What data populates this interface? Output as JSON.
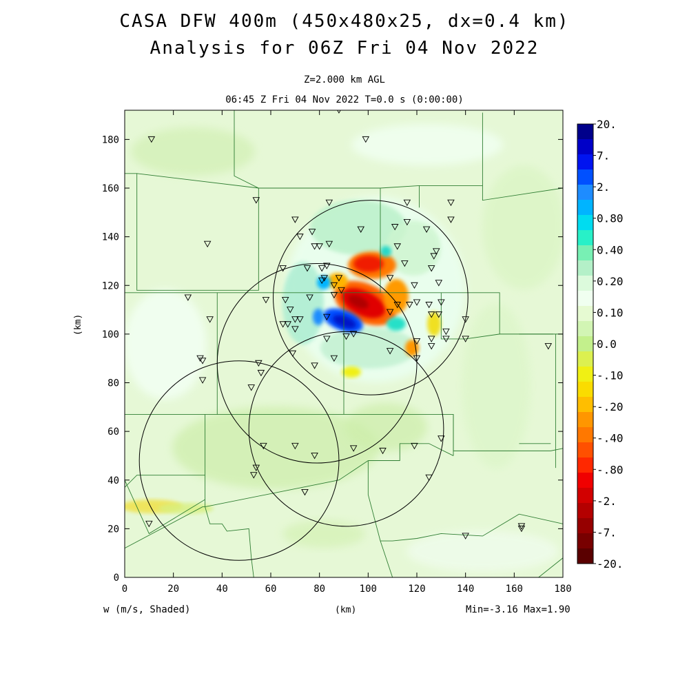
{
  "title_line1": "CASA DFW 400m (450x480x25, dx=0.4 km)",
  "title_line2": "Analysis for 06Z Fri 04 Nov 2022",
  "level": "Z=2.000 km AGL",
  "valid_time": "06:45 Z Fri 04 Nov 2022    T=0.0 s (0:00:00)",
  "x_axis_label": "(km)",
  "y_axis_label": "(km)",
  "field_label": "w (m/s, Shaded)",
  "minmax": "Min=-3.16 Max=1.90",
  "x_ticks": [
    "0",
    "20",
    "40",
    "60",
    "80",
    "100",
    "120",
    "140",
    "160",
    "180"
  ],
  "y_ticks": [
    "0",
    "20",
    "40",
    "60",
    "80",
    "100",
    "120",
    "140",
    "160",
    "180"
  ],
  "colorbar": {
    "labels": [
      "20.",
      "7.",
      "2.",
      "0.80",
      "0.40",
      "0.20",
      "0.10",
      "0.0",
      "-.10",
      "-.20",
      "-.40",
      "-.80",
      "-2.",
      "-7.",
      "-20."
    ],
    "colors": [
      "#00008b",
      "#0000c8",
      "#0014f0",
      "#0050ff",
      "#1e8cff",
      "#00b4ff",
      "#00dcf0",
      "#28f0c8",
      "#78f0b4",
      "#b4f0c8",
      "#dcfadc",
      "#f0fff0",
      "#e6fad2",
      "#d2f5b4",
      "#c3f08c",
      "#dcf050",
      "#f0f014",
      "#fadc00",
      "#ffbe00",
      "#ff9600",
      "#ff7800",
      "#ff5000",
      "#ff2800",
      "#f00000",
      "#d20000",
      "#b40000",
      "#960000",
      "#780000",
      "#5a0000"
    ]
  },
  "radar_sites": [
    {
      "name": "radar-coverage-north",
      "center_km": [
        101,
        115
      ],
      "radius_km": 40
    },
    {
      "name": "radar-coverage-central",
      "center_km": [
        79,
        88
      ],
      "radius_km": 41
    },
    {
      "name": "radar-coverage-south-east",
      "center_km": [
        91,
        61
      ],
      "radius_km": 40
    },
    {
      "name": "radar-coverage-south-west",
      "center_km": [
        47,
        48
      ],
      "radius_km": 41
    }
  ],
  "stations_km": [
    [
      88,
      192
    ],
    [
      11,
      180
    ],
    [
      99,
      180
    ],
    [
      116,
      154
    ],
    [
      54,
      155
    ],
    [
      84,
      154
    ],
    [
      134,
      154
    ],
    [
      70,
      147
    ],
    [
      134,
      147
    ],
    [
      97,
      143
    ],
    [
      111,
      144
    ],
    [
      116,
      146
    ],
    [
      124,
      143
    ],
    [
      77,
      142
    ],
    [
      72,
      140
    ],
    [
      34,
      137
    ],
    [
      78,
      136
    ],
    [
      80,
      136
    ],
    [
      84,
      137
    ],
    [
      112,
      136
    ],
    [
      128,
      134
    ],
    [
      127,
      132
    ],
    [
      115,
      129
    ],
    [
      65,
      127
    ],
    [
      75,
      127
    ],
    [
      81,
      127
    ],
    [
      83,
      128
    ],
    [
      126,
      127
    ],
    [
      88,
      123
    ],
    [
      82,
      123
    ],
    [
      81,
      122
    ],
    [
      109,
      123
    ],
    [
      119,
      120
    ],
    [
      129,
      121
    ],
    [
      86,
      120
    ],
    [
      89,
      118
    ],
    [
      26,
      115
    ],
    [
      58,
      114
    ],
    [
      66,
      114
    ],
    [
      76,
      115
    ],
    [
      120,
      113
    ],
    [
      112,
      112
    ],
    [
      117,
      112
    ],
    [
      125,
      112
    ],
    [
      130,
      113
    ],
    [
      86,
      116
    ],
    [
      68,
      110
    ],
    [
      126,
      108
    ],
    [
      129,
      108
    ],
    [
      35,
      106
    ],
    [
      65,
      104
    ],
    [
      70,
      106
    ],
    [
      72,
      106
    ],
    [
      109,
      109
    ],
    [
      140,
      106
    ],
    [
      67,
      104
    ],
    [
      70,
      102
    ],
    [
      83,
      107
    ],
    [
      132,
      101
    ],
    [
      126,
      98
    ],
    [
      132,
      98
    ],
    [
      140,
      98
    ],
    [
      91,
      99
    ],
    [
      94,
      100
    ],
    [
      120,
      97
    ],
    [
      174,
      95
    ],
    [
      126,
      95
    ],
    [
      109,
      93
    ],
    [
      83,
      98
    ],
    [
      69,
      92
    ],
    [
      120,
      90
    ],
    [
      31,
      90
    ],
    [
      32,
      89
    ],
    [
      55,
      88
    ],
    [
      86,
      90
    ],
    [
      78,
      87
    ],
    [
      56,
      84
    ],
    [
      32,
      81
    ],
    [
      52,
      78
    ],
    [
      130,
      57
    ],
    [
      57,
      54
    ],
    [
      70,
      54
    ],
    [
      94,
      53
    ],
    [
      119,
      54
    ],
    [
      106,
      52
    ],
    [
      78,
      50
    ],
    [
      53,
      42
    ],
    [
      54,
      45
    ],
    [
      125,
      41
    ],
    [
      74,
      35
    ],
    [
      10,
      22
    ],
    [
      140,
      17
    ],
    [
      163,
      21
    ],
    [
      163,
      20
    ]
  ],
  "county_lines_km": [
    [
      [
        45,
        193
      ],
      [
        45,
        165
      ],
      [
        55,
        160
      ],
      [
        65,
        160
      ]
    ],
    [
      [
        0,
        166
      ],
      [
        5,
        166
      ],
      [
        5,
        118
      ],
      [
        38,
        118
      ]
    ],
    [
      [
        5,
        166
      ],
      [
        55,
        160
      ]
    ],
    [
      [
        55,
        160
      ],
      [
        55,
        118
      ],
      [
        38,
        118
      ]
    ],
    [
      [
        55,
        160
      ],
      [
        105,
        160
      ],
      [
        121,
        161
      ],
      [
        147,
        161
      ],
      [
        147,
        191
      ]
    ],
    [
      [
        147,
        161
      ],
      [
        147,
        155
      ],
      [
        180,
        160
      ]
    ],
    [
      [
        0,
        117
      ],
      [
        38,
        117
      ],
      [
        38,
        67
      ],
      [
        0,
        67
      ]
    ],
    [
      [
        38,
        117
      ],
      [
        140,
        117
      ],
      [
        154,
        117
      ],
      [
        154,
        100
      ],
      [
        180,
        100
      ]
    ],
    [
      [
        105,
        160
      ],
      [
        105,
        117
      ]
    ],
    [
      [
        121,
        161
      ],
      [
        121,
        152
      ]
    ],
    [
      [
        130,
        117
      ],
      [
        130,
        98
      ],
      [
        140,
        98
      ],
      [
        154,
        100
      ]
    ],
    [
      [
        90,
        117
      ],
      [
        90,
        67
      ]
    ],
    [
      [
        38,
        67
      ],
      [
        90,
        67
      ],
      [
        135,
        67
      ],
      [
        135,
        50
      ]
    ],
    [
      [
        135,
        67
      ],
      [
        135,
        52
      ],
      [
        175,
        52
      ],
      [
        180,
        53
      ]
    ],
    [
      [
        33,
        67
      ],
      [
        33,
        42
      ],
      [
        5,
        42
      ],
      [
        0,
        37
      ]
    ],
    [
      [
        33,
        42
      ],
      [
        33,
        29
      ],
      [
        35,
        22
      ],
      [
        40,
        22
      ],
      [
        42,
        19
      ],
      [
        51,
        20
      ],
      [
        52,
        8
      ],
      [
        53,
        0
      ]
    ],
    [
      [
        0,
        12
      ],
      [
        32,
        29
      ],
      [
        33,
        29
      ]
    ],
    [
      [
        0,
        40
      ],
      [
        10,
        18
      ],
      [
        33,
        32
      ]
    ],
    [
      [
        33,
        29
      ],
      [
        88,
        40
      ],
      [
        100,
        48
      ]
    ],
    [
      [
        100,
        48
      ],
      [
        113,
        48
      ],
      [
        113,
        55
      ],
      [
        125,
        55
      ],
      [
        135,
        50
      ]
    ],
    [
      [
        100,
        48
      ],
      [
        100,
        34
      ],
      [
        105,
        15
      ],
      [
        110,
        15
      ],
      [
        120,
        16
      ],
      [
        130,
        18
      ],
      [
        147,
        17
      ],
      [
        162,
        26
      ],
      [
        180,
        22
      ]
    ],
    [
      [
        105,
        15
      ],
      [
        110,
        0
      ]
    ],
    [
      [
        177,
        100
      ],
      [
        177,
        45
      ]
    ],
    [
      [
        162,
        100
      ],
      [
        176,
        100
      ]
    ],
    [
      [
        162,
        55
      ],
      [
        175,
        55
      ]
    ],
    [
      [
        180,
        8
      ],
      [
        170,
        0
      ]
    ]
  ]
}
